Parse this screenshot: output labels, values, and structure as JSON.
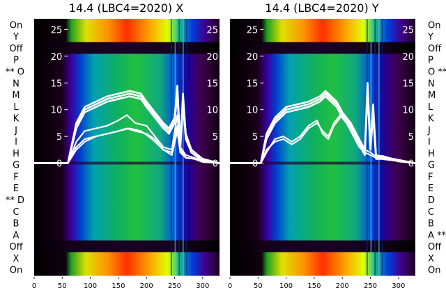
{
  "chart_data": [
    {
      "type": "line",
      "title": "14.4 (LBC4=2020) X",
      "xlabel": "",
      "ylabel": "",
      "xlim": [
        0,
        330
      ],
      "ylim": [
        -21,
        27
      ],
      "x_ticks": [
        0,
        50,
        100,
        150,
        200,
        250,
        300
      ],
      "y_ticks": [
        0,
        5,
        10,
        15,
        20,
        25
      ],
      "row_labels_side": "left",
      "row_labels": [
        "On",
        "Y",
        "Off",
        "P",
        "** O",
        "N",
        "M",
        "L",
        "K",
        "J",
        "I",
        "H",
        "G",
        "F",
        "E",
        "** D",
        "C",
        "B",
        "A",
        "Off",
        "X",
        "On"
      ],
      "background": "heatmap",
      "series": [
        {
          "x": [
            0,
            60,
            75,
            90,
            110,
            130,
            150,
            170,
            190,
            200,
            215,
            230,
            240,
            250,
            255,
            260,
            265,
            270,
            280,
            300,
            330
          ],
          "y": [
            0,
            0,
            7,
            10,
            11,
            12,
            12.5,
            13,
            12.5,
            11,
            9,
            7,
            6,
            8,
            14,
            3,
            13,
            5,
            2,
            0.5,
            0
          ]
        },
        {
          "x": [
            0,
            60,
            75,
            90,
            110,
            130,
            150,
            170,
            190,
            200,
            215,
            230,
            240,
            250,
            255,
            260,
            265,
            270,
            280,
            300,
            330
          ],
          "y": [
            0,
            0,
            7.5,
            10.5,
            11.5,
            12.5,
            13,
            13.5,
            13,
            11.5,
            9.5,
            7.5,
            6.5,
            8.5,
            14.5,
            3.5,
            12,
            5.5,
            2.5,
            0.8,
            0
          ]
        },
        {
          "x": [
            0,
            60,
            75,
            90,
            110,
            130,
            150,
            170,
            190,
            200,
            215,
            230,
            240,
            250,
            255,
            260,
            265,
            270,
            280,
            300,
            330
          ],
          "y": [
            0,
            0,
            6.5,
            9.5,
            10.5,
            11.5,
            12,
            12.5,
            12,
            10.5,
            8.5,
            6.5,
            5.5,
            7.5,
            13,
            2.5,
            11,
            4.5,
            2,
            0.3,
            0
          ]
        },
        {
          "x": [
            0,
            60,
            75,
            90,
            110,
            130,
            150,
            165,
            180,
            200,
            215,
            230,
            245,
            255,
            260,
            270,
            285,
            300,
            330
          ],
          "y": [
            0,
            0,
            4,
            6,
            6.5,
            7,
            8,
            9,
            7.5,
            7,
            5,
            3,
            2.5,
            9,
            3,
            1.5,
            1,
            0.3,
            0
          ]
        },
        {
          "x": [
            0,
            60,
            75,
            90,
            110,
            130,
            150,
            165,
            180,
            200,
            215,
            230,
            245,
            255,
            260,
            270,
            285,
            300,
            330
          ],
          "y": [
            0,
            0,
            3,
            4.5,
            5,
            5.5,
            6,
            6.5,
            6,
            5.5,
            4.5,
            2.5,
            2,
            7,
            2.5,
            1,
            0.8,
            0.2,
            0
          ]
        },
        {
          "x": [
            0,
            60,
            75,
            90,
            110,
            130,
            150,
            170,
            190,
            210,
            230,
            245,
            255,
            260,
            270,
            285,
            300,
            330
          ],
          "y": [
            0,
            0,
            2.5,
            4,
            5,
            5.5,
            6,
            6.5,
            6,
            4.5,
            2.5,
            1.5,
            6,
            2,
            1,
            0.8,
            0.3,
            0
          ]
        }
      ]
    },
    {
      "type": "line",
      "title": "14.4 (LBC4=2020) Y",
      "xlabel": "",
      "ylabel": "",
      "xlim": [
        0,
        330
      ],
      "ylim": [
        -21,
        27
      ],
      "x_ticks": [
        0,
        50,
        100,
        150,
        200,
        250,
        300
      ],
      "y_ticks": [
        0,
        5,
        10,
        15,
        20,
        25
      ],
      "row_labels_side": "right",
      "row_labels": [
        "On",
        "Y",
        "Off",
        "P",
        "O **",
        "N",
        "M",
        "L",
        "K",
        "J",
        "I",
        "H",
        "G",
        "F",
        "E",
        "D",
        "C",
        "B",
        "A **",
        "Off",
        "X",
        "On"
      ],
      "background": "heatmap",
      "series": [
        {
          "x": [
            0,
            55,
            65,
            80,
            100,
            120,
            140,
            160,
            170,
            180,
            190,
            200,
            215,
            230,
            240,
            245,
            250,
            255,
            260,
            270,
            300,
            330
          ],
          "y": [
            0,
            0,
            5,
            8,
            10,
            10.5,
            11,
            12,
            13,
            12,
            11,
            9,
            7,
            4,
            2,
            15,
            3,
            11,
            1,
            1,
            0.5,
            0
          ]
        },
        {
          "x": [
            0,
            55,
            65,
            80,
            100,
            120,
            140,
            160,
            170,
            180,
            190,
            200,
            215,
            230,
            240,
            245,
            250,
            255,
            260,
            270,
            300,
            330
          ],
          "y": [
            0,
            0,
            5.5,
            8.5,
            10.5,
            11,
            11.5,
            12.5,
            13.5,
            12.5,
            11.5,
            9.5,
            7.5,
            4.5,
            2.5,
            14,
            3.5,
            10,
            1.5,
            1.2,
            0.6,
            0
          ]
        },
        {
          "x": [
            0,
            55,
            65,
            80,
            100,
            120,
            140,
            160,
            170,
            180,
            190,
            200,
            215,
            230,
            240,
            245,
            250,
            255,
            260,
            270,
            300,
            330
          ],
          "y": [
            0,
            0,
            4.5,
            7.5,
            9.5,
            10,
            10.5,
            11.5,
            12.5,
            11.5,
            10.5,
            8.5,
            6.5,
            3.5,
            1.5,
            13,
            2.5,
            9,
            0.8,
            0.8,
            0.4,
            0
          ]
        },
        {
          "x": [
            0,
            55,
            65,
            80,
            95,
            110,
            125,
            140,
            155,
            165,
            175,
            185,
            200,
            215,
            230,
            240,
            250,
            260,
            270,
            300,
            330
          ],
          "y": [
            0,
            0,
            2,
            4.5,
            5,
            4,
            5,
            7,
            8,
            5.5,
            4.5,
            7,
            9,
            6,
            3,
            2,
            1.5,
            1,
            1.2,
            0.3,
            0
          ]
        },
        {
          "x": [
            0,
            55,
            65,
            80,
            95,
            110,
            125,
            140,
            155,
            165,
            175,
            185,
            200,
            215,
            230,
            240,
            250,
            260,
            270,
            300,
            330
          ],
          "y": [
            0,
            0,
            2.5,
            4,
            4.5,
            3.5,
            4.5,
            6.5,
            7.5,
            6,
            5,
            7.5,
            9.5,
            6.5,
            3.5,
            2.5,
            2,
            1.2,
            1.4,
            0.5,
            0
          ]
        }
      ]
    }
  ]
}
